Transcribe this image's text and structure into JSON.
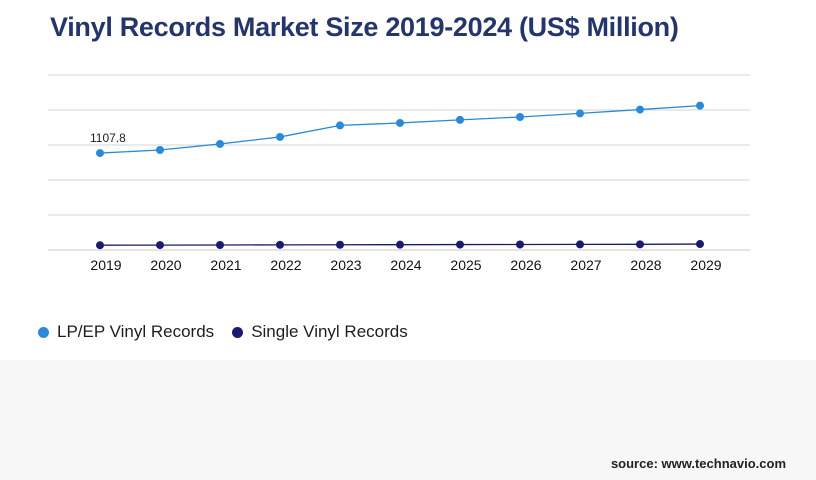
{
  "title": "Vinyl Records Market Size 2019-2024 (US$ Million)",
  "source": "source: www.technavio.com",
  "chart_data": {
    "type": "line",
    "x": [
      "2019",
      "2020",
      "2021",
      "2022",
      "2023",
      "2024",
      "2025",
      "2026",
      "2027",
      "2028",
      "2029"
    ],
    "series": [
      {
        "name": "LP/EP Vinyl Records",
        "color": "#2b8ad6",
        "values": [
          1107.8,
          1143,
          1212,
          1292,
          1424,
          1452,
          1487,
          1520,
          1561,
          1605,
          1650
        ],
        "data_labels": [
          "1107.8",
          "",
          "",
          "",
          "",
          "",
          "",
          "",
          "",
          "",
          ""
        ]
      },
      {
        "name": "Single Vinyl Records",
        "color": "#1a1a6e",
        "values": [
          55,
          56,
          57,
          59,
          60,
          61,
          62,
          63,
          64,
          65,
          68
        ],
        "data_labels": [
          "",
          "",
          "",
          "",
          "",
          "",
          "",
          "",
          "",
          "",
          ""
        ]
      }
    ],
    "ylim": [
      0,
      2000
    ],
    "grid": true,
    "legend": "bottom-left"
  }
}
